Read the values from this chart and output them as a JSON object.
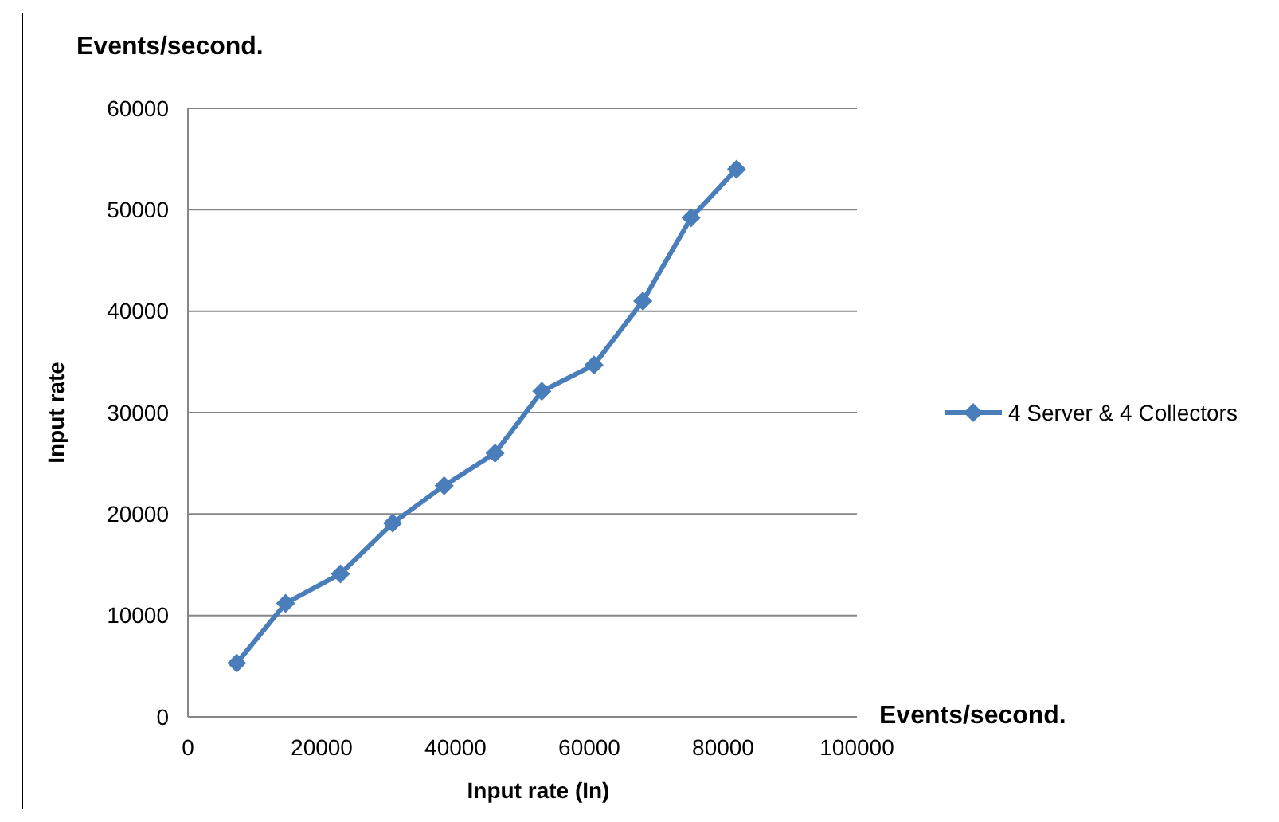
{
  "chart_data": {
    "type": "line",
    "title": "Events/second.",
    "xlabel": "Input rate (In)",
    "ylabel": "Input rate",
    "annotations": [
      "Events/second."
    ],
    "x": [
      7300,
      14600,
      22800,
      30600,
      38300,
      45900,
      52900,
      60700,
      68000,
      75200,
      82000
    ],
    "series": [
      {
        "name": "4 Server & 4 Collectors",
        "color": "#4a7ebb",
        "values": [
          5300,
          11200,
          14100,
          19100,
          22800,
          26000,
          32100,
          34700,
          41000,
          49200,
          54000
        ]
      }
    ],
    "xlim": [
      0,
      100000
    ],
    "xticks": [
      0,
      20000,
      40000,
      60000,
      80000,
      100000
    ],
    "ylim": [
      0,
      60000
    ],
    "yticks": [
      0,
      10000,
      20000,
      30000,
      40000,
      50000,
      60000
    ],
    "grid": "y",
    "legend": "right",
    "marker": "diamond",
    "line_style": "solid"
  }
}
